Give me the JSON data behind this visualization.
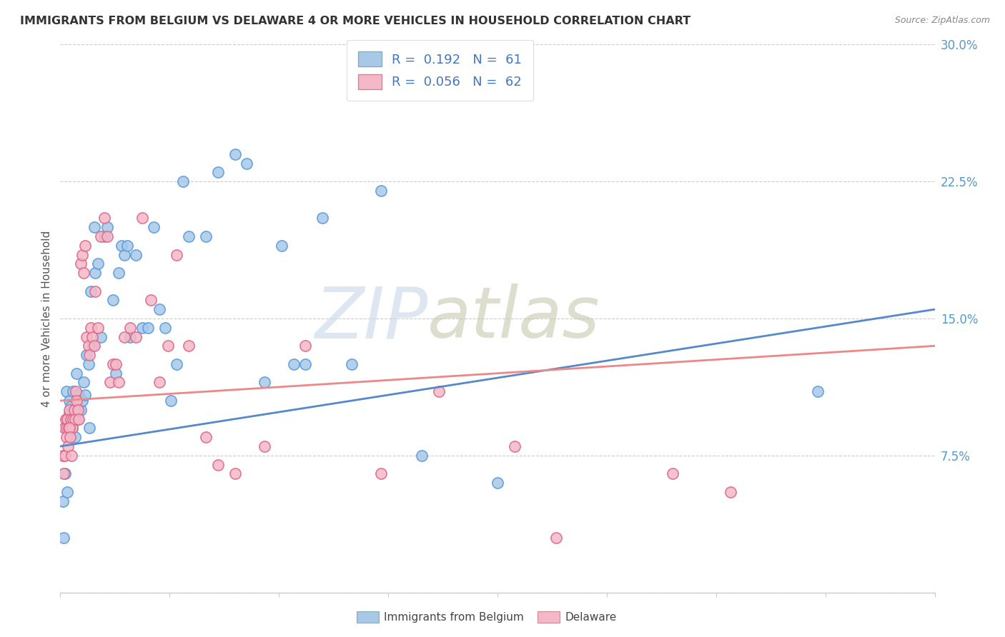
{
  "title": "IMMIGRANTS FROM BELGIUM VS DELAWARE 4 OR MORE VEHICLES IN HOUSEHOLD CORRELATION CHART",
  "source": "Source: ZipAtlas.com",
  "ylabel": "4 or more Vehicles in Household",
  "xlim": [
    0.0,
    15.0
  ],
  "ylim": [
    0.0,
    30.0
  ],
  "yticks": [
    0.0,
    7.5,
    15.0,
    22.5,
    30.0
  ],
  "ytick_labels": [
    "",
    "7.5%",
    "15.0%",
    "22.5%",
    "30.0%"
  ],
  "xtick_positions": [
    0.0,
    1.875,
    3.75,
    5.625,
    7.5,
    9.375,
    11.25,
    13.125,
    15.0
  ],
  "legend_blue_R": "0.192",
  "legend_blue_N": "61",
  "legend_pink_R": "0.056",
  "legend_pink_N": "62",
  "blue_color": "#a8c8e8",
  "pink_color": "#f4b8c8",
  "blue_line_color": "#5588cc",
  "pink_line_color": "#ee8888",
  "watermark_zip": "ZIP",
  "watermark_atlas": "atlas",
  "blue_trend_x0": 0.0,
  "blue_trend_x1": 15.0,
  "blue_trend_y0": 8.0,
  "blue_trend_y1": 15.5,
  "pink_trend_x0": 0.0,
  "pink_trend_x1": 15.0,
  "pink_trend_y0": 10.5,
  "pink_trend_y1": 13.5,
  "blue_x": [
    0.05,
    0.08,
    0.1,
    0.12,
    0.14,
    0.15,
    0.16,
    0.18,
    0.2,
    0.22,
    0.25,
    0.28,
    0.3,
    0.32,
    0.35,
    0.38,
    0.4,
    0.42,
    0.45,
    0.48,
    0.5,
    0.52,
    0.55,
    0.58,
    0.6,
    0.65,
    0.7,
    0.75,
    0.8,
    0.9,
    0.95,
    1.0,
    1.05,
    1.1,
    1.15,
    1.2,
    1.3,
    1.4,
    1.5,
    1.6,
    1.7,
    1.8,
    1.9,
    2.0,
    2.1,
    2.2,
    2.5,
    2.7,
    3.0,
    3.2,
    3.5,
    3.8,
    4.0,
    4.2,
    4.5,
    5.0,
    5.5,
    6.2,
    7.5,
    13.0,
    0.06
  ],
  "blue_y": [
    5.0,
    6.5,
    11.0,
    5.5,
    9.5,
    9.8,
    10.5,
    10.2,
    9.0,
    11.0,
    8.5,
    12.0,
    9.5,
    10.8,
    10.0,
    10.5,
    11.5,
    10.8,
    13.0,
    12.5,
    9.0,
    16.5,
    13.5,
    20.0,
    17.5,
    18.0,
    14.0,
    19.5,
    20.0,
    16.0,
    12.0,
    17.5,
    19.0,
    18.5,
    19.0,
    14.0,
    18.5,
    14.5,
    14.5,
    20.0,
    15.5,
    14.5,
    10.5,
    12.5,
    22.5,
    19.5,
    19.5,
    23.0,
    24.0,
    23.5,
    11.5,
    19.0,
    12.5,
    12.5,
    20.5,
    12.5,
    22.0,
    7.5,
    6.0,
    11.0,
    3.0
  ],
  "pink_x": [
    0.05,
    0.07,
    0.09,
    0.1,
    0.12,
    0.14,
    0.16,
    0.18,
    0.2,
    0.22,
    0.24,
    0.25,
    0.27,
    0.28,
    0.3,
    0.32,
    0.35,
    0.38,
    0.4,
    0.42,
    0.45,
    0.48,
    0.5,
    0.52,
    0.55,
    0.58,
    0.6,
    0.65,
    0.7,
    0.75,
    0.8,
    0.85,
    0.9,
    0.95,
    1.0,
    1.1,
    1.2,
    1.3,
    1.4,
    1.55,
    1.7,
    1.85,
    2.0,
    2.2,
    2.5,
    2.7,
    3.0,
    3.5,
    4.2,
    5.5,
    6.5,
    7.8,
    8.5,
    10.5,
    11.5,
    0.06,
    0.08,
    0.11,
    0.13,
    0.15,
    0.17,
    0.19
  ],
  "pink_y": [
    7.5,
    9.0,
    9.5,
    9.0,
    9.5,
    9.0,
    10.0,
    9.5,
    9.0,
    9.5,
    10.0,
    9.5,
    11.0,
    10.5,
    10.0,
    9.5,
    18.0,
    18.5,
    17.5,
    19.0,
    14.0,
    13.5,
    13.0,
    14.5,
    14.0,
    13.5,
    16.5,
    14.5,
    19.5,
    20.5,
    19.5,
    11.5,
    12.5,
    12.5,
    11.5,
    14.0,
    14.5,
    14.0,
    20.5,
    16.0,
    11.5,
    13.5,
    18.5,
    13.5,
    8.5,
    7.0,
    6.5,
    8.0,
    13.5,
    6.5,
    11.0,
    8.0,
    3.0,
    6.5,
    5.5,
    6.5,
    7.5,
    8.5,
    8.0,
    9.0,
    8.5,
    7.5
  ]
}
